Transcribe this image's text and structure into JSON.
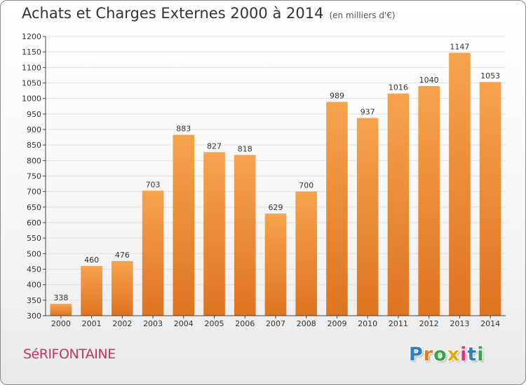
{
  "header": {
    "title": "Achats et Charges Externes 2000 à 2014",
    "unit": "(en milliers d'€)"
  },
  "commune": "SéRIFONTAINE",
  "logo": {
    "letters": [
      "P",
      "r",
      "o",
      "x",
      "i",
      "t",
      "i"
    ],
    "colors": [
      "#2f7fc1",
      "#e07b1f",
      "#3aa34a",
      "#e5a800",
      "#d63a7a",
      "#2f7fc1",
      "#3aa34a"
    ]
  },
  "colors": {
    "bar_top": "#f6a34e",
    "bar_bottom": "#de7420",
    "grid": "#e0e0e0",
    "axis": "#444444",
    "commune_text": "#c8345c"
  },
  "chart_data": {
    "type": "bar",
    "title": "Achats et Charges Externes 2000 à 2014",
    "subtitle": "(en milliers d'€)",
    "categories": [
      "2000",
      "2001",
      "2002",
      "2003",
      "2004",
      "2005",
      "2006",
      "2007",
      "2008",
      "2009",
      "2010",
      "2011",
      "2012",
      "2013",
      "2014"
    ],
    "values": [
      338,
      460,
      476,
      703,
      883,
      827,
      818,
      629,
      700,
      989,
      937,
      1016,
      1040,
      1147,
      1053
    ],
    "value_labels": [
      "338",
      "460",
      "476",
      "703",
      "883",
      "827",
      "818",
      "629",
      "700",
      "989",
      "937",
      "1016",
      "1040",
      "1147",
      "1053"
    ],
    "ylim": [
      300,
      1200
    ],
    "yticks": [
      300,
      350,
      400,
      450,
      500,
      550,
      600,
      650,
      700,
      750,
      800,
      850,
      900,
      950,
      1000,
      1050,
      1100,
      1150,
      1200
    ],
    "ytick_labels": [
      "300",
      "350",
      "400",
      "450",
      "500",
      "550",
      "600",
      "650",
      "700",
      "750",
      "800",
      "850",
      "900",
      "950",
      "1000",
      "1050",
      "1100",
      "1150",
      "1200"
    ],
    "grid": true,
    "xlabel": "",
    "ylabel": ""
  }
}
